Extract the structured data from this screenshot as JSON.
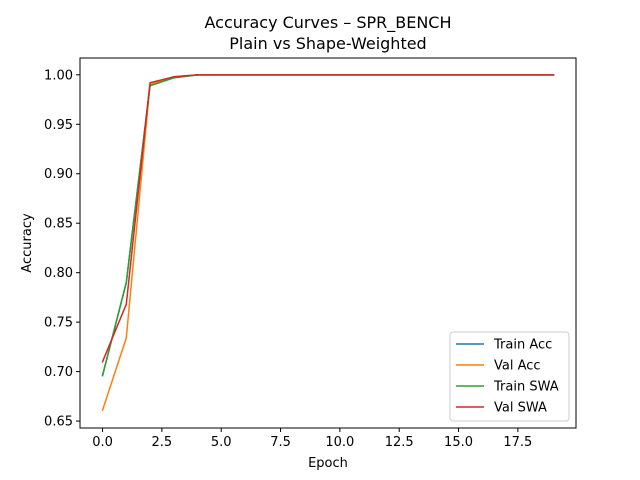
{
  "chart_data": {
    "type": "line",
    "title": "Accuracy Curves – SPR_BENCH",
    "subtitle": "Plain vs Shape-Weighted",
    "xlabel": "Epoch",
    "ylabel": "Accuracy",
    "xlim": [
      -0.95,
      19.95
    ],
    "ylim": [
      0.643,
      1.017
    ],
    "x_ticks": [
      0.0,
      2.5,
      5.0,
      7.5,
      10.0,
      12.5,
      15.0,
      17.5
    ],
    "x_tick_labels": [
      "0.0",
      "2.5",
      "5.0",
      "7.5",
      "10.0",
      "12.5",
      "15.0",
      "17.5"
    ],
    "y_ticks": [
      0.65,
      0.7,
      0.75,
      0.8,
      0.85,
      0.9,
      0.95,
      1.0
    ],
    "y_tick_labels": [
      "0.65",
      "0.70",
      "0.75",
      "0.80",
      "0.85",
      "0.90",
      "0.95",
      "1.00"
    ],
    "grid": false,
    "legend_position": "lower-right",
    "x": [
      0,
      1,
      2,
      3,
      4,
      5,
      6,
      7,
      8,
      9,
      10,
      11,
      12,
      13,
      14,
      15,
      16,
      17,
      18,
      19
    ],
    "series": [
      {
        "name": "Train Acc",
        "color": "#1f77b4",
        "values": [
          0.696,
          0.79,
          0.989,
          0.997,
          1.0,
          1.0,
          1.0,
          1.0,
          1.0,
          1.0,
          1.0,
          1.0,
          1.0,
          1.0,
          1.0,
          1.0,
          1.0,
          1.0,
          1.0,
          1.0
        ]
      },
      {
        "name": "Val Acc",
        "color": "#ff7f0e",
        "values": [
          0.661,
          0.734,
          0.99,
          0.998,
          1.0,
          1.0,
          1.0,
          1.0,
          1.0,
          1.0,
          1.0,
          1.0,
          1.0,
          1.0,
          1.0,
          1.0,
          1.0,
          1.0,
          1.0,
          1.0
        ]
      },
      {
        "name": "Train SWA",
        "color": "#2ca02c",
        "values": [
          0.696,
          0.79,
          0.989,
          0.997,
          1.0,
          1.0,
          1.0,
          1.0,
          1.0,
          1.0,
          1.0,
          1.0,
          1.0,
          1.0,
          1.0,
          1.0,
          1.0,
          1.0,
          1.0,
          1.0
        ]
      },
      {
        "name": "Val SWA",
        "color": "#d62728",
        "values": [
          0.71,
          0.768,
          0.992,
          0.998,
          1.0,
          1.0,
          1.0,
          1.0,
          1.0,
          1.0,
          1.0,
          1.0,
          1.0,
          1.0,
          1.0,
          1.0,
          1.0,
          1.0,
          1.0,
          1.0
        ]
      }
    ]
  }
}
